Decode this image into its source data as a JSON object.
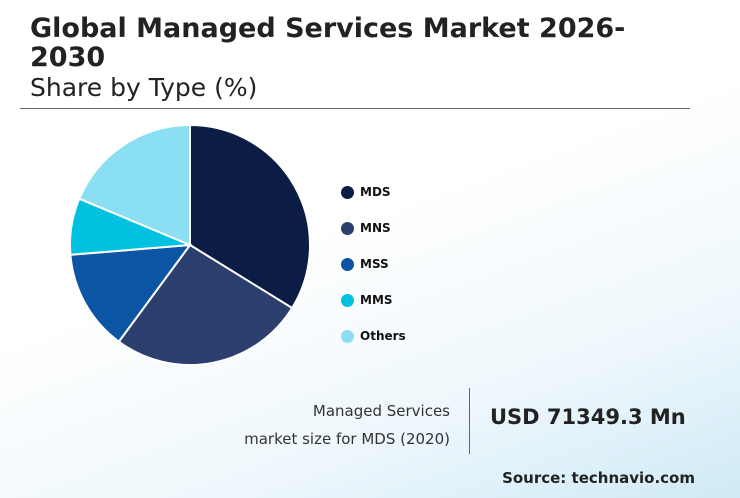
{
  "header": {
    "title": "Global Managed Services Market 2026-2030",
    "subtitle": "Share by Type (%)"
  },
  "chart_data": {
    "type": "pie",
    "categories": [
      "MDS",
      "MNS",
      "MSS",
      "MMS",
      "Others"
    ],
    "values": [
      33.8,
      26.3,
      13.6,
      7.6,
      18.7
    ],
    "colors": [
      "#0b1c45",
      "#2b3e6e",
      "#0b55a4",
      "#00c1e0",
      "#8bdff2"
    ],
    "legend_position": "right"
  },
  "stat": {
    "label_line1": "Managed Services",
    "label_line2": "market size for MDS (2020)",
    "value": "USD 71349.3 Mn"
  },
  "source": "Source: technavio.com"
}
